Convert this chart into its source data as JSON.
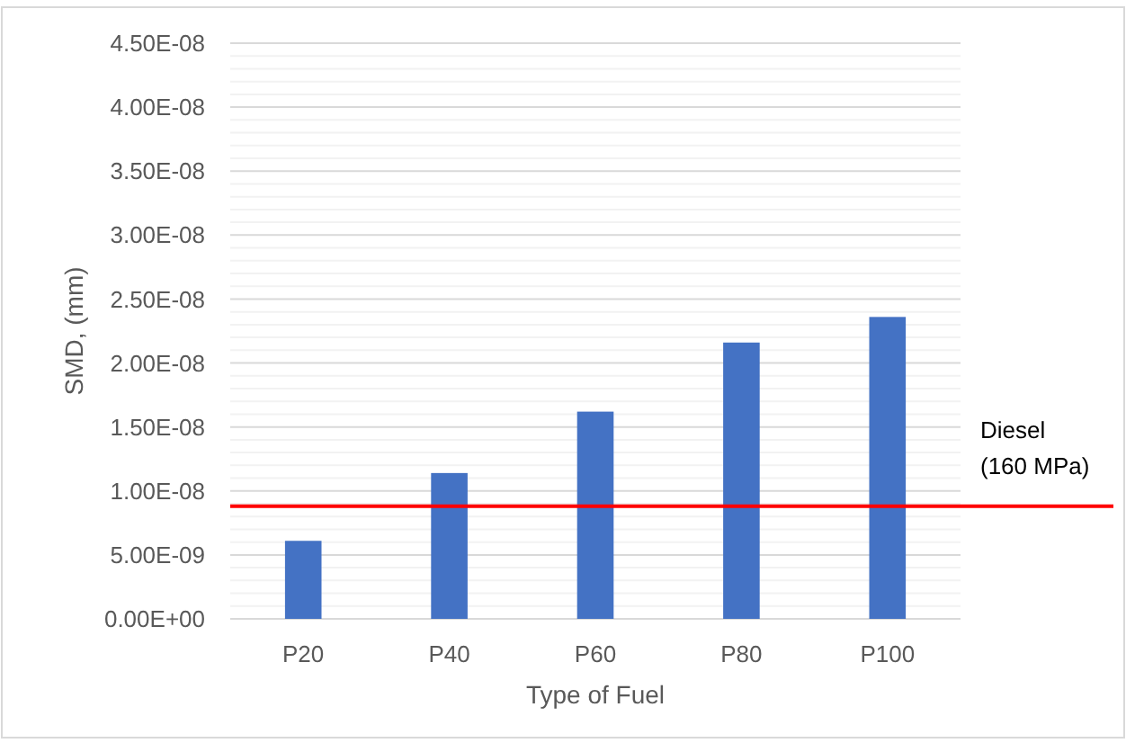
{
  "chart_data": {
    "type": "bar",
    "xlabel": "Type of Fuel",
    "ylabel": "SMD, (mm)",
    "categories": [
      "P20",
      "P40",
      "P60",
      "P80",
      "P100"
    ],
    "values": [
      6.1e-09,
      1.14e-08,
      1.62e-08,
      2.16e-08,
      2.36e-08
    ],
    "color": "#4472c4",
    "ylim": [
      0,
      4.5e-08
    ],
    "yticks": [
      {
        "value": 0,
        "label": "0.00E+00"
      },
      {
        "value": 5e-09,
        "label": "5.00E-09"
      },
      {
        "value": 1e-08,
        "label": "1.00E-08"
      },
      {
        "value": 1.5e-08,
        "label": "1.50E-08"
      },
      {
        "value": 2e-08,
        "label": "2.00E-08"
      },
      {
        "value": 2.5e-08,
        "label": "2.50E-08"
      },
      {
        "value": 3e-08,
        "label": "3.00E-08"
      },
      {
        "value": 3.5e-08,
        "label": "3.50E-08"
      },
      {
        "value": 4e-08,
        "label": "4.00E-08"
      },
      {
        "value": 4.5e-08,
        "label": "4.50E-08"
      }
    ],
    "grid": "y",
    "ref_lines": [
      {
        "axis": "y",
        "value": 8.8e-09,
        "label": "Diesel\n(160 MPa)",
        "color": "#ff0000"
      }
    ]
  }
}
